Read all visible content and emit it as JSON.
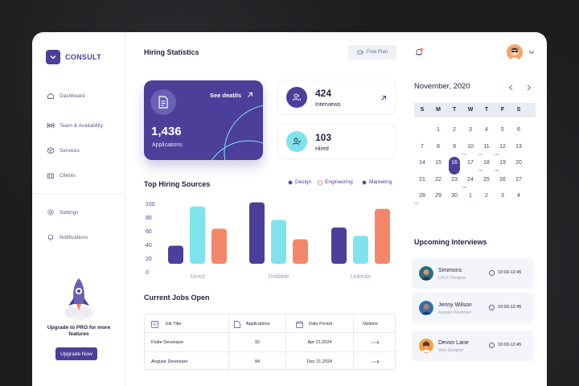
{
  "brand": {
    "name": "CONSULT"
  },
  "sidebar": {
    "items": [
      {
        "label": "Dashboard",
        "icon": "home-icon"
      },
      {
        "label": "Team & Availability",
        "icon": "command-icon"
      },
      {
        "label": "Services",
        "icon": "cube-icon"
      },
      {
        "label": "Clients",
        "icon": "building-icon"
      },
      {
        "label": "Settings",
        "icon": "gear-icon"
      },
      {
        "label": "Notifications",
        "icon": "bell-icon"
      }
    ],
    "upgrade": {
      "text": "Upgrade to PRO for more features",
      "button": "Upgrade Now"
    }
  },
  "header": {
    "title": "Hiring Statistics",
    "plan_button": "Free Plan"
  },
  "applications": {
    "value": "1,436",
    "label": "Applications",
    "link": "See deatils"
  },
  "stats": [
    {
      "value": "424",
      "label": "Interviews"
    },
    {
      "value": "103",
      "label": "Hired"
    }
  ],
  "sources": {
    "title": "Top Hiring Sources",
    "legend": [
      "Design",
      "Engineering",
      "Marketing"
    ]
  },
  "chart_data": {
    "type": "bar",
    "categories": [
      "Direct",
      "Dribbble",
      "Linkedin"
    ],
    "series": [
      {
        "name": "Design",
        "values": [
          31,
          105,
          62
        ]
      },
      {
        "name": "Engineering",
        "values": [
          98,
          75,
          48
        ]
      },
      {
        "name": "Marketing",
        "values": [
          60,
          42,
          94
        ]
      }
    ],
    "yticks": [
      "100",
      "80",
      "60",
      "40",
      "20",
      "0"
    ],
    "colors": [
      "#4b3f9a",
      "#7ee3ec",
      "#f4876a"
    ],
    "ylim": [
      0,
      110
    ]
  },
  "jobs": {
    "title": "Current Jobs Open",
    "columns": [
      "Job Title",
      "Applications",
      "Date Period",
      "Options"
    ],
    "rows": [
      {
        "title": "Flutte Developer",
        "applications": "92",
        "date": "Apr 21,2024"
      },
      {
        "title": "Angular Developer",
        "applications": "84",
        "date": "Dec 21,2024"
      }
    ]
  },
  "calendar": {
    "month": "November, 2020",
    "weekdays": [
      "S",
      "M",
      "T",
      "W",
      "T",
      "F",
      "S"
    ],
    "weeks": [
      [
        "",
        "1",
        "2",
        "3",
        "4",
        "5",
        "6"
      ],
      [
        "7",
        "8",
        "9",
        "10",
        "11",
        "12",
        "13"
      ],
      [
        "14",
        "15",
        "16",
        "17",
        "18",
        "19",
        "20"
      ],
      [
        "21",
        "22",
        "23",
        "24",
        "25",
        "26",
        "27"
      ],
      [
        "28",
        "29",
        "30",
        "1",
        "2",
        "3",
        "4"
      ]
    ],
    "selected": "16"
  },
  "interviews": {
    "title": "Upcoming Interviews",
    "items": [
      {
        "name": "Simmons",
        "role": "UI/UX Designer",
        "time": "10:00-12:45"
      },
      {
        "name": "Jenny Wilson",
        "role": "Angular Developer",
        "time": "10:00-12:45"
      },
      {
        "name": "Devon Lane",
        "role": "Web Designer",
        "time": "10:00-12:45"
      }
    ]
  }
}
